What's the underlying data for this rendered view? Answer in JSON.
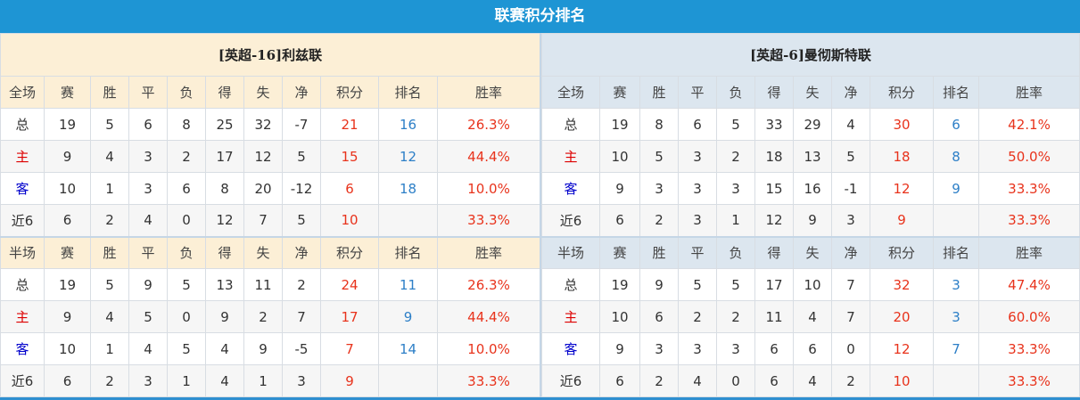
{
  "title": "联赛积分排名",
  "columns": [
    "赛",
    "胜",
    "平",
    "负",
    "得",
    "失",
    "净",
    "积分",
    "排名",
    "胜率"
  ],
  "tables": [
    {
      "team": "[英超-16]利兹联",
      "sections": [
        {
          "label": "全场",
          "rows": [
            {
              "type": "总",
              "v": [
                "19",
                "5",
                "6",
                "8",
                "25",
                "32",
                "-7",
                "21",
                "16",
                "26.3%"
              ]
            },
            {
              "type": "主",
              "v": [
                "9",
                "4",
                "3",
                "2",
                "17",
                "12",
                "5",
                "15",
                "12",
                "44.4%"
              ]
            },
            {
              "type": "客",
              "v": [
                "10",
                "1",
                "3",
                "6",
                "8",
                "20",
                "-12",
                "6",
                "18",
                "10.0%"
              ]
            },
            {
              "type": "近6",
              "v": [
                "6",
                "2",
                "4",
                "0",
                "12",
                "7",
                "5",
                "10",
                "",
                "33.3%"
              ]
            }
          ]
        },
        {
          "label": "半场",
          "rows": [
            {
              "type": "总",
              "v": [
                "19",
                "5",
                "9",
                "5",
                "13",
                "11",
                "2",
                "24",
                "11",
                "26.3%"
              ]
            },
            {
              "type": "主",
              "v": [
                "9",
                "4",
                "5",
                "0",
                "9",
                "2",
                "7",
                "17",
                "9",
                "44.4%"
              ]
            },
            {
              "type": "客",
              "v": [
                "10",
                "1",
                "4",
                "5",
                "4",
                "9",
                "-5",
                "7",
                "14",
                "10.0%"
              ]
            },
            {
              "type": "近6",
              "v": [
                "6",
                "2",
                "3",
                "1",
                "4",
                "1",
                "3",
                "9",
                "",
                "33.3%"
              ]
            }
          ]
        }
      ]
    },
    {
      "team": "[英超-6]曼彻斯特联",
      "sections": [
        {
          "label": "全场",
          "rows": [
            {
              "type": "总",
              "v": [
                "19",
                "8",
                "6",
                "5",
                "33",
                "29",
                "4",
                "30",
                "6",
                "42.1%"
              ]
            },
            {
              "type": "主",
              "v": [
                "10",
                "5",
                "3",
                "2",
                "18",
                "13",
                "5",
                "18",
                "8",
                "50.0%"
              ]
            },
            {
              "type": "客",
              "v": [
                "9",
                "3",
                "3",
                "3",
                "15",
                "16",
                "-1",
                "12",
                "9",
                "33.3%"
              ]
            },
            {
              "type": "近6",
              "v": [
                "6",
                "2",
                "3",
                "1",
                "12",
                "9",
                "3",
                "9",
                "",
                "33.3%"
              ]
            }
          ]
        },
        {
          "label": "半场",
          "rows": [
            {
              "type": "总",
              "v": [
                "19",
                "9",
                "5",
                "5",
                "17",
                "10",
                "7",
                "32",
                "3",
                "47.4%"
              ]
            },
            {
              "type": "主",
              "v": [
                "10",
                "6",
                "2",
                "2",
                "11",
                "4",
                "7",
                "20",
                "3",
                "60.0%"
              ]
            },
            {
              "type": "客",
              "v": [
                "9",
                "3",
                "3",
                "3",
                "6",
                "6",
                "0",
                "12",
                "7",
                "33.3%"
              ]
            },
            {
              "type": "近6",
              "v": [
                "6",
                "2",
                "4",
                "0",
                "6",
                "4",
                "2",
                "10",
                "",
                "33.3%"
              ]
            }
          ]
        }
      ]
    }
  ],
  "colors": {
    "title_bar": "#1e95d4",
    "points": "#e8331c",
    "rank": "#2d7fc7",
    "home": "#dd0000",
    "away": "#0000cc"
  }
}
